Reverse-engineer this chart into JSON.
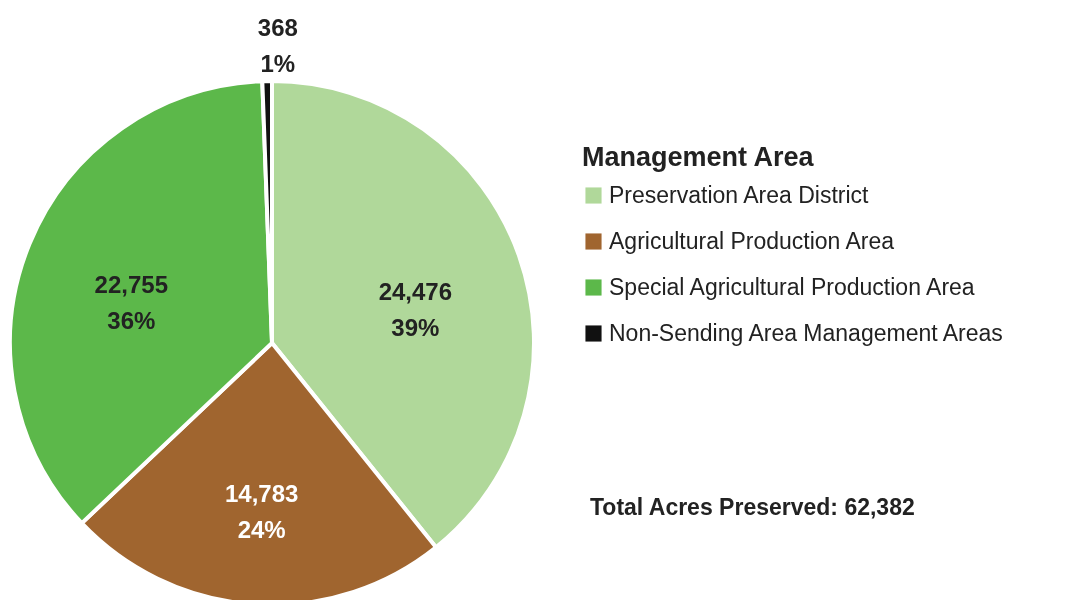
{
  "chart_data": {
    "type": "pie",
    "categories": [
      "Preservation Area District",
      "Agricultural Production Area",
      "Special Agricultural Production Area",
      "Non-Sending Area Management Areas"
    ],
    "values": [
      24476,
      14783,
      22755,
      368
    ],
    "colors": [
      "#b0d89a",
      "#a0652f",
      "#5cb84a",
      "#111111"
    ],
    "value_labels": [
      "24,476\n39%",
      "14,783\n24%",
      "22,755\n36%",
      "368\n1%"
    ],
    "legend_title": "Management Area",
    "legend": "right",
    "annotations": [
      "Total Acres Preserved: 62,382"
    ]
  }
}
